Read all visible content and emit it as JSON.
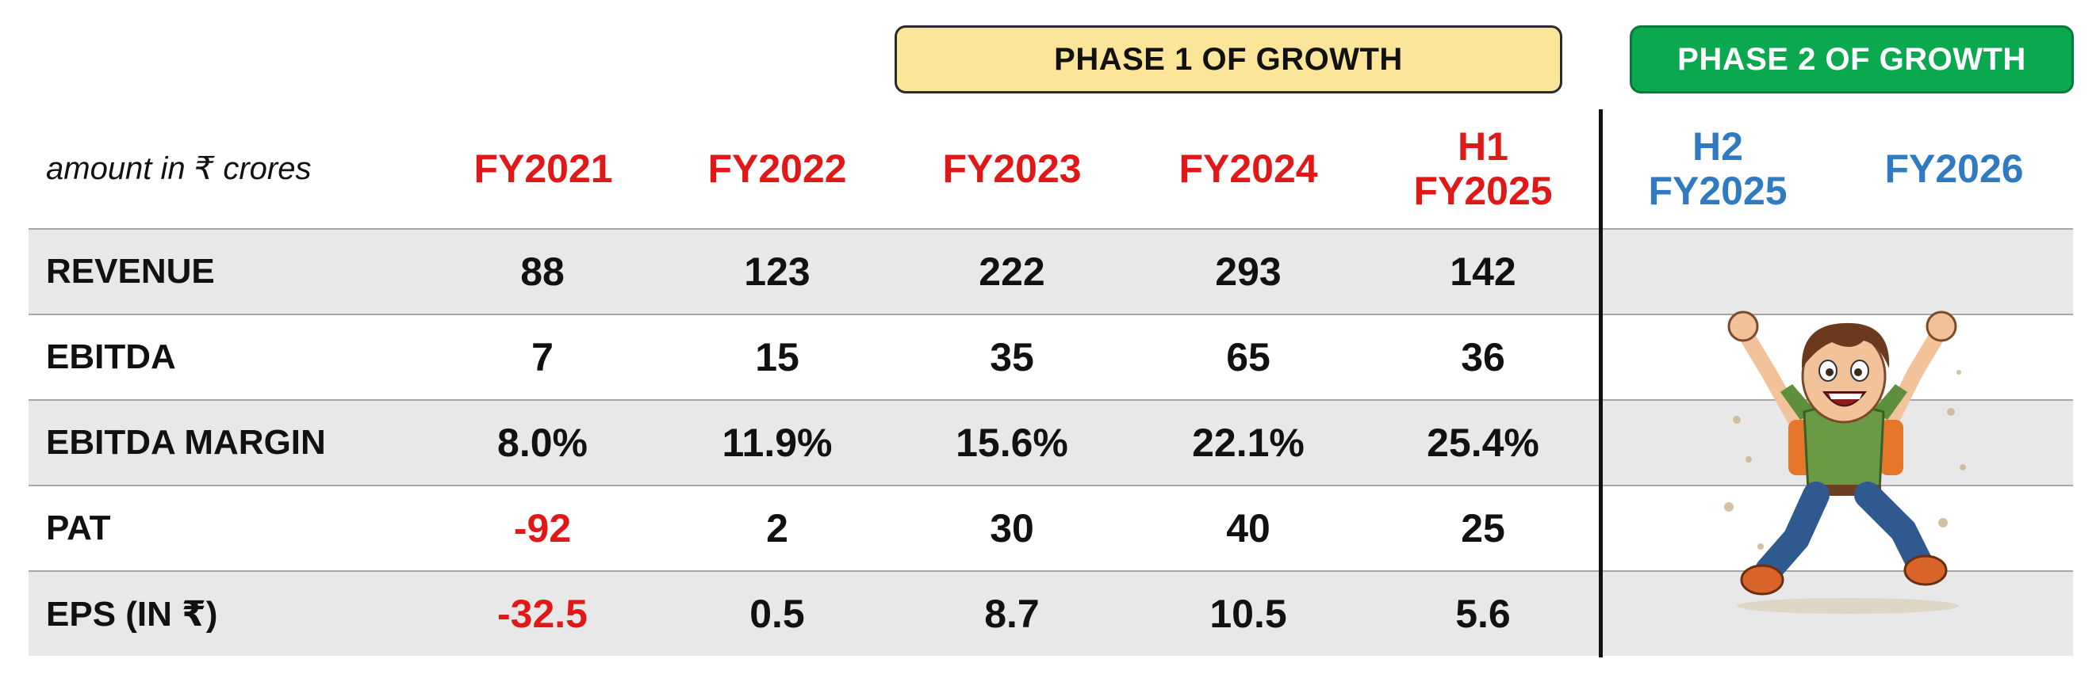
{
  "phases": {
    "phase1": "PHASE 1 OF GROWTH",
    "phase2": "PHASE 2 OF GROWTH"
  },
  "unit_label": "amount in ₹ crores",
  "columns": [
    {
      "line1": "FY2021",
      "line2": ""
    },
    {
      "line1": "FY2022",
      "line2": ""
    },
    {
      "line1": "FY2023",
      "line2": ""
    },
    {
      "line1": "FY2024",
      "line2": ""
    },
    {
      "line1": "H1",
      "line2": "FY2025"
    },
    {
      "line1": "H2",
      "line2": "FY2025"
    },
    {
      "line1": "FY2026",
      "line2": ""
    }
  ],
  "rows": [
    {
      "label": "REVENUE",
      "values": [
        "88",
        "123",
        "222",
        "293",
        "142"
      ]
    },
    {
      "label": "EBITDA",
      "values": [
        "7",
        "15",
        "35",
        "65",
        "36"
      ]
    },
    {
      "label": "EBITDA MARGIN",
      "values": [
        "8.0%",
        "11.9%",
        "15.6%",
        "22.1%",
        "25.4%"
      ]
    },
    {
      "label": "PAT",
      "values": [
        "-92",
        "2",
        "30",
        "40",
        "25"
      ]
    },
    {
      "label": "EPS (IN ₹)",
      "values": [
        "-32.5",
        "0.5",
        "8.7",
        "10.5",
        "5.6"
      ]
    }
  ],
  "colors": {
    "past_year": "#e01818",
    "future_year": "#2f7ac0",
    "negative_value": "#e01818",
    "phase1_bg": "#fbe598",
    "phase2_bg": "#0aa84f"
  },
  "illustration": "jumping-cartoon-boy-icon"
}
